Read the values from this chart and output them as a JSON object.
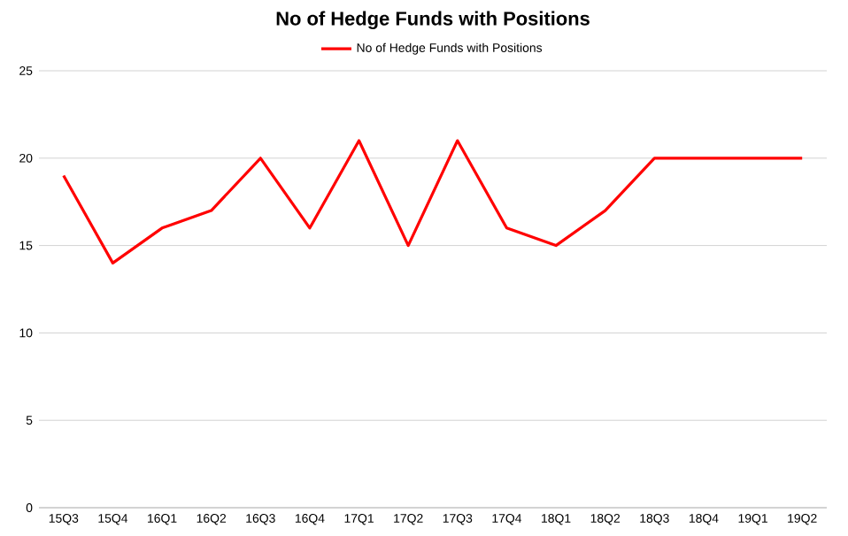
{
  "chart_data": {
    "type": "line",
    "title": "No of Hedge Funds with Positions",
    "categories": [
      "15Q3",
      "15Q4",
      "16Q1",
      "16Q2",
      "16Q3",
      "16Q4",
      "17Q1",
      "17Q2",
      "17Q3",
      "17Q4",
      "18Q1",
      "18Q2",
      "18Q3",
      "18Q4",
      "19Q1",
      "19Q2"
    ],
    "series": [
      {
        "name": "No of Hedge Funds with Positions",
        "color": "#ff0000",
        "values": [
          19,
          14,
          16,
          17,
          20,
          16,
          21,
          15,
          21,
          16,
          15,
          17,
          20,
          20,
          20,
          20
        ]
      }
    ],
    "ylim": [
      0,
      25
    ],
    "yticks": [
      0,
      5,
      10,
      15,
      20,
      25
    ],
    "grid": "y",
    "legend": "top",
    "marker": "none",
    "line_style": "solid"
  }
}
